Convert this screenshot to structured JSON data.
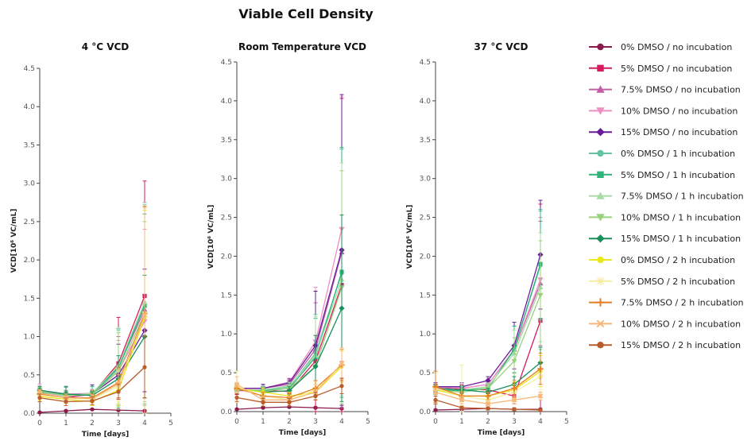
{
  "title": "Viable Cell Density",
  "chart_data": {
    "type": "line",
    "title": "Viable Cell Density",
    "series_defs": [
      {
        "name": "0% DMSO / no incubation",
        "color": "#8b1a4a",
        "marker": "circle"
      },
      {
        "name": "5% DMSO / no incubation",
        "color": "#d81b60",
        "marker": "square"
      },
      {
        "name": "7.5% DMSO / no incubation",
        "color": "#c05fa6",
        "marker": "triangle-up"
      },
      {
        "name": "10% DMSO / no incubation",
        "color": "#ee8fc4",
        "marker": "triangle-down"
      },
      {
        "name": "15% DMSO / no incubation",
        "color": "#6a1b9a",
        "marker": "diamond"
      },
      {
        "name": "0% DMSO / 1 h incubation",
        "color": "#66c2a5",
        "marker": "circle"
      },
      {
        "name": "5% DMSO / 1 h incubation",
        "color": "#2eb37a",
        "marker": "square"
      },
      {
        "name": "7.5% DMSO / 1 h incubation",
        "color": "#a8dba8",
        "marker": "triangle-up"
      },
      {
        "name": "10% DMSO / 1 h incubation",
        "color": "#98d27a",
        "marker": "triangle-down"
      },
      {
        "name": "15% DMSO / 1 h incubation",
        "color": "#1a8f5c",
        "marker": "diamond"
      },
      {
        "name": "0% DMSO / 2 h incubation",
        "color": "#e8e81a",
        "marker": "circle"
      },
      {
        "name": "5% DMSO / 2 h incubation",
        "color": "#f5eea0",
        "marker": "cross"
      },
      {
        "name": "7.5% DMSO / 2 h incubation",
        "color": "#e67e22",
        "marker": "plus"
      },
      {
        "name": "10% DMSO / 2 h incubation",
        "color": "#f5b87a",
        "marker": "x"
      },
      {
        "name": "15% DMSO / 2 h incubation",
        "color": "#b85c2a",
        "marker": "circle"
      }
    ],
    "panels": [
      {
        "title": "4 °C VCD",
        "xlabel": "Time [days]",
        "ylabel": "VCD[10⁶ VC/mL]",
        "xlim": [
          0,
          5
        ],
        "ylim": [
          0,
          4.5
        ],
        "xticks": [
          0,
          1,
          2,
          3,
          4,
          5
        ],
        "yticks": [
          0.0,
          0.5,
          1.0,
          1.5,
          2.0,
          2.5,
          3.0,
          3.5,
          4.0,
          4.5
        ],
        "x": [
          0,
          1,
          2,
          3,
          4
        ],
        "series": [
          {
            "values": [
              0.01,
              0.03,
              0.05,
              0.04,
              0.03
            ],
            "err": [
              0.01,
              0.01,
              0.01,
              0.01,
              0.01
            ]
          },
          {
            "values": [
              0.26,
              0.2,
              0.25,
              0.65,
              1.53
            ],
            "err": [
              0.05,
              0.05,
              0.05,
              0.6,
              1.5
            ]
          },
          {
            "values": [
              0.28,
              0.22,
              0.24,
              0.6,
              1.35
            ],
            "err": [
              0.05,
              0.05,
              0.05,
              0.4,
              1.4
            ]
          },
          {
            "values": [
              0.3,
              0.25,
              0.26,
              0.55,
              1.2
            ],
            "err": [
              0.08,
              0.05,
              0.05,
              0.4,
              1.2
            ]
          },
          {
            "values": [
              0.3,
              0.24,
              0.25,
              0.5,
              1.08
            ],
            "err": [
              0.05,
              0.1,
              0.12,
              0.4,
              0.8
            ]
          },
          {
            "values": [
              0.28,
              0.24,
              0.25,
              0.58,
              1.42
            ],
            "err": [
              0.05,
              0.1,
              0.1,
              0.5,
              1.3
            ]
          },
          {
            "values": [
              0.27,
              0.24,
              0.25,
              0.6,
              1.4
            ],
            "err": [
              0.05,
              0.05,
              0.1,
              0.5,
              1.2
            ]
          },
          {
            "values": [
              0.29,
              0.22,
              0.26,
              0.62,
              1.45
            ],
            "err": [
              0.05,
              0.05,
              0.05,
              0.5,
              1.3
            ]
          },
          {
            "values": [
              0.28,
              0.23,
              0.24,
              0.55,
              1.3
            ],
            "err": [
              0.05,
              0.05,
              0.05,
              0.5,
              1.2
            ]
          },
          {
            "values": [
              0.3,
              0.25,
              0.23,
              0.45,
              1.0
            ],
            "err": [
              0.05,
              0.1,
              0.05,
              0.3,
              0.8
            ]
          },
          {
            "values": [
              0.22,
              0.18,
              0.15,
              0.3,
              1.25
            ],
            "err": [
              0.05,
              0.05,
              0.05,
              0.2,
              1.4
            ]
          },
          {
            "values": [
              0.24,
              0.2,
              0.18,
              0.35,
              1.3
            ],
            "err": [
              0.05,
              0.05,
              0.05,
              0.2,
              1.4
            ]
          },
          {
            "values": [
              0.25,
              0.2,
              0.2,
              0.4,
              1.3
            ],
            "err": [
              0.05,
              0.05,
              0.05,
              0.2,
              1.4
            ]
          },
          {
            "values": [
              0.26,
              0.2,
              0.19,
              0.38,
              1.28
            ],
            "err": [
              0.05,
              0.05,
              0.05,
              0.2,
              1.4
            ]
          },
          {
            "values": [
              0.2,
              0.15,
              0.16,
              0.28,
              0.6
            ],
            "err": [
              0.05,
              0.05,
              0.05,
              0.1,
              0.4
            ]
          }
        ]
      },
      {
        "title": "Room Temperature VCD",
        "xlabel": "Time [days]",
        "ylabel": "VCD[10⁶ VC/mL]",
        "xlim": [
          0,
          5
        ],
        "ylim": [
          0,
          4.5
        ],
        "xticks": [
          0,
          1,
          2,
          3,
          4,
          5
        ],
        "yticks": [
          0.0,
          0.5,
          1.0,
          1.5,
          2.0,
          2.5,
          3.0,
          3.5,
          4.0,
          4.5
        ],
        "x": [
          0,
          1,
          2,
          3,
          4
        ],
        "series": [
          {
            "values": [
              0.03,
              0.05,
              0.06,
              0.05,
              0.04
            ],
            "err": [
              0.01,
              0.01,
              0.01,
              0.01,
              0.01
            ]
          },
          {
            "values": [
              0.27,
              0.27,
              0.26,
              0.65,
              1.63
            ],
            "err": [
              0.05,
              0.05,
              0.05,
              0.9,
              2.4
            ]
          },
          {
            "values": [
              0.3,
              0.3,
              0.35,
              0.8,
              2.05
            ],
            "err": [
              0.05,
              0.05,
              0.05,
              0.6,
              2.0
            ]
          },
          {
            "values": [
              0.3,
              0.3,
              0.38,
              0.9,
              2.35
            ],
            "err": [
              0.05,
              0.05,
              0.05,
              0.7,
              1.7
            ]
          },
          {
            "values": [
              0.3,
              0.3,
              0.37,
              0.85,
              2.08
            ],
            "err": [
              0.05,
              0.05,
              0.05,
              0.7,
              2.0
            ]
          },
          {
            "values": [
              0.28,
              0.28,
              0.32,
              0.75,
              1.78
            ],
            "err": [
              0.05,
              0.05,
              0.05,
              0.5,
              1.6
            ]
          },
          {
            "values": [
              0.28,
              0.27,
              0.3,
              0.7,
              1.8
            ],
            "err": [
              0.05,
              0.05,
              0.05,
              0.5,
              1.6
            ]
          },
          {
            "values": [
              0.28,
              0.28,
              0.33,
              0.72,
              1.7
            ],
            "err": [
              0.05,
              0.05,
              0.05,
              0.5,
              1.5
            ]
          },
          {
            "values": [
              0.28,
              0.26,
              0.3,
              0.58,
              1.6
            ],
            "err": [
              0.05,
              0.05,
              0.05,
              0.4,
              1.5
            ]
          },
          {
            "values": [
              0.3,
              0.25,
              0.27,
              0.58,
              1.33
            ],
            "err": [
              0.05,
              0.05,
              0.05,
              0.4,
              1.2
            ]
          },
          {
            "values": [
              0.3,
              0.25,
              0.2,
              0.25,
              0.58
            ],
            "err": [
              0.05,
              0.05,
              0.05,
              0.1,
              0.2
            ]
          },
          {
            "values": [
              0.32,
              0.2,
              0.15,
              0.28,
              0.6
            ],
            "err": [
              0.2,
              0.05,
              0.05,
              0.1,
              0.2
            ]
          },
          {
            "values": [
              0.3,
              0.2,
              0.18,
              0.3,
              0.6
            ],
            "err": [
              0.05,
              0.05,
              0.05,
              0.1,
              0.2
            ]
          },
          {
            "values": [
              0.35,
              0.15,
              0.15,
              0.25,
              0.62
            ],
            "err": [
              0.1,
              0.05,
              0.05,
              0.1,
              0.2
            ]
          },
          {
            "values": [
              0.18,
              0.12,
              0.12,
              0.2,
              0.33
            ],
            "err": [
              0.05,
              0.05,
              0.05,
              0.05,
              0.1
            ]
          }
        ]
      },
      {
        "title": "37 °C VCD",
        "xlabel": "Time [days]",
        "ylabel": "VCD[10⁶ VC/mL]",
        "xlim": [
          0,
          5
        ],
        "ylim": [
          0,
          4.5
        ],
        "xticks": [
          0,
          1,
          2,
          3,
          4,
          5
        ],
        "yticks": [
          0.0,
          0.5,
          1.0,
          1.5,
          2.0,
          2.5,
          3.0,
          3.5,
          4.0,
          4.5
        ],
        "x": [
          0,
          1,
          2,
          3,
          4
        ],
        "series": [
          {
            "values": [
              0.02,
              0.03,
              0.04,
              0.03,
              0.03
            ],
            "err": [
              0.01,
              0.01,
              0.01,
              0.01,
              0.01
            ]
          },
          {
            "values": [
              0.3,
              0.29,
              0.28,
              0.2,
              1.17
            ],
            "err": [
              0.05,
              0.05,
              0.05,
              0.1,
              1.5
            ]
          },
          {
            "values": [
              0.32,
              0.3,
              0.35,
              0.8,
              1.65
            ],
            "err": [
              0.05,
              0.05,
              0.05,
              0.3,
              0.8
            ]
          },
          {
            "values": [
              0.32,
              0.3,
              0.35,
              0.8,
              1.7
            ],
            "err": [
              0.05,
              0.05,
              0.05,
              0.3,
              0.8
            ]
          },
          {
            "values": [
              0.32,
              0.32,
              0.4,
              0.85,
              2.02
            ],
            "err": [
              0.05,
              0.05,
              0.05,
              0.3,
              0.7
            ]
          },
          {
            "values": [
              0.27,
              0.27,
              0.3,
              0.8,
              1.88
            ],
            "err": [
              0.05,
              0.05,
              0.05,
              0.3,
              0.7
            ]
          },
          {
            "values": [
              0.28,
              0.27,
              0.3,
              0.8,
              1.9
            ],
            "err": [
              0.05,
              0.05,
              0.05,
              0.3,
              0.7
            ]
          },
          {
            "values": [
              0.3,
              0.28,
              0.32,
              0.75,
              1.6
            ],
            "err": [
              0.05,
              0.05,
              0.05,
              0.3,
              0.7
            ]
          },
          {
            "values": [
              0.28,
              0.25,
              0.3,
              0.65,
              1.5
            ],
            "err": [
              0.05,
              0.05,
              0.05,
              0.3,
              0.7
            ]
          },
          {
            "values": [
              0.3,
              0.28,
              0.25,
              0.35,
              0.63
            ],
            "err": [
              0.05,
              0.05,
              0.05,
              0.1,
              0.2
            ]
          },
          {
            "values": [
              0.28,
              0.2,
              0.2,
              0.28,
              0.52
            ],
            "err": [
              0.05,
              0.05,
              0.05,
              0.1,
              0.2
            ]
          },
          {
            "values": [
              0.3,
              0.2,
              0.15,
              0.25,
              0.45
            ],
            "err": [
              0.2,
              0.4,
              0.05,
              0.1,
              0.2
            ]
          },
          {
            "values": [
              0.32,
              0.2,
              0.2,
              0.3,
              0.55
            ],
            "err": [
              0.2,
              0.05,
              0.05,
              0.1,
              0.2
            ]
          },
          {
            "values": [
              0.25,
              0.15,
              0.1,
              0.15,
              0.2
            ],
            "err": [
              0.05,
              0.05,
              0.05,
              0.05,
              0.05
            ]
          },
          {
            "values": [
              0.15,
              0.05,
              0.04,
              0.03,
              0.02
            ],
            "err": [
              0.05,
              0.02,
              0.02,
              0.02,
              0.01
            ]
          }
        ]
      }
    ]
  }
}
